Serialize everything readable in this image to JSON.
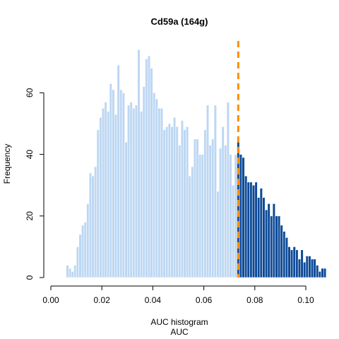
{
  "chart_data": {
    "type": "bar",
    "title": "Cd59a (164g)",
    "xlabel": "AUC histogram",
    "xlabel2": "AUC",
    "ylabel": "Frequency",
    "xlim": [
      0.0,
      0.1
    ],
    "ylim": [
      0,
      75
    ],
    "x_ticks": [
      0.0,
      0.02,
      0.04,
      0.06,
      0.08,
      0.1
    ],
    "x_tick_labels": [
      "0.00",
      "0.02",
      "0.04",
      "0.06",
      "0.08",
      "0.10"
    ],
    "y_ticks": [
      0,
      20,
      40,
      60
    ],
    "y_tick_labels": [
      "0",
      "20",
      "40",
      "60"
    ],
    "bin_start": 0.006,
    "bin_width": 0.001,
    "threshold": 0.0735,
    "colors": {
      "below_threshold": "#bdd7f3",
      "above_threshold": "#0d4a97",
      "threshold_line": "#ff8c00",
      "bar_border": "#ffffff"
    },
    "values": [
      4,
      3,
      2,
      4,
      10,
      14,
      17,
      18,
      24,
      34,
      33,
      36,
      48,
      52,
      55,
      57,
      54,
      63,
      61,
      53,
      69,
      61,
      60,
      44,
      56,
      57,
      55,
      56,
      74,
      54,
      62,
      71,
      72,
      68,
      60,
      58,
      55,
      55,
      48,
      49,
      50,
      49,
      52,
      49,
      43,
      51,
      48,
      49,
      33,
      36,
      45,
      45,
      40,
      40,
      48,
      56,
      43,
      45,
      56,
      28,
      42,
      49,
      43,
      57,
      40,
      30,
      40,
      44,
      40,
      39,
      33,
      31,
      31,
      30,
      31,
      26,
      29,
      26,
      22,
      24,
      20,
      24,
      20,
      20,
      17,
      15,
      13,
      10,
      9,
      10,
      9,
      6,
      9,
      5,
      7,
      7,
      6,
      6,
      4,
      2,
      3,
      3
    ]
  }
}
